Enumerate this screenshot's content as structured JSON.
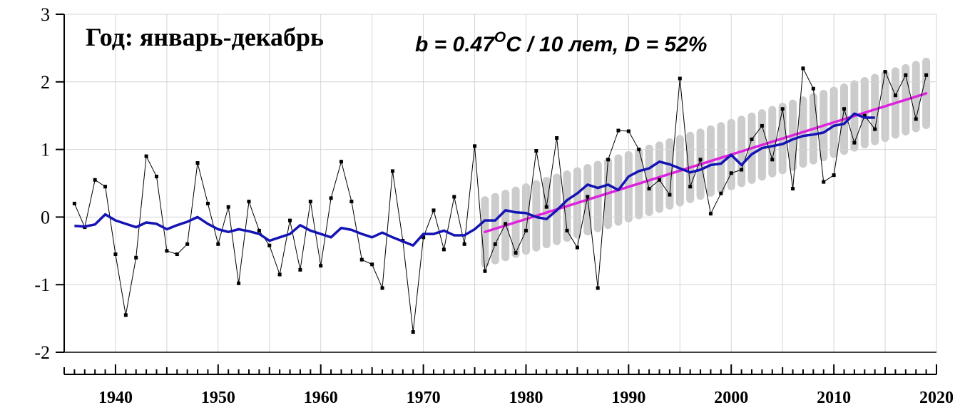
{
  "chart_data": {
    "type": "line",
    "title": "Год: январь-декабрь",
    "formula": {
      "prefix": "b = 0.47",
      "sup": "O",
      "suffix": "C / 10 лет, D = 52%"
    },
    "xlabel": "",
    "ylabel": "",
    "xlim": [
      1935,
      2020
    ],
    "ylim": [
      -2,
      3
    ],
    "yticks": [
      -2,
      -1,
      0,
      1,
      2,
      3
    ],
    "xticks_labeled": [
      1940,
      1950,
      1960,
      1970,
      1980,
      1990,
      2000,
      2010,
      2020
    ],
    "grid": true,
    "colors": {
      "annual": "#000000",
      "smoothed": "#1414b4",
      "trend": "#dd22dd",
      "band": "#cccccc",
      "grid": "#d4d4d4"
    },
    "series": [
      {
        "name": "annual",
        "x": [
          1936,
          1937,
          1938,
          1939,
          1940,
          1941,
          1942,
          1943,
          1944,
          1945,
          1946,
          1947,
          1948,
          1949,
          1950,
          1951,
          1952,
          1953,
          1954,
          1955,
          1956,
          1957,
          1958,
          1959,
          1960,
          1961,
          1962,
          1963,
          1964,
          1965,
          1966,
          1967,
          1968,
          1969,
          1970,
          1971,
          1972,
          1973,
          1974,
          1975,
          1976,
          1977,
          1978,
          1979,
          1980,
          1981,
          1982,
          1983,
          1984,
          1985,
          1986,
          1987,
          1988,
          1989,
          1990,
          1991,
          1992,
          1993,
          1994,
          1995,
          1996,
          1997,
          1998,
          1999,
          2000,
          2001,
          2002,
          2003,
          2004,
          2005,
          2006,
          2007,
          2008,
          2009,
          2010,
          2011,
          2012,
          2013,
          2014,
          2015,
          2016,
          2017,
          2018,
          2019
        ],
        "values": [
          0.2,
          -0.15,
          0.55,
          0.45,
          -0.55,
          -1.45,
          -0.6,
          0.9,
          0.6,
          -0.5,
          -0.55,
          -0.4,
          0.8,
          0.2,
          -0.4,
          0.15,
          -0.98,
          0.23,
          -0.2,
          -0.42,
          -0.85,
          -0.05,
          -0.78,
          0.23,
          -0.72,
          0.28,
          0.82,
          0.23,
          -0.63,
          -0.7,
          -1.05,
          0.68,
          -0.35,
          -1.7,
          -0.3,
          0.1,
          -0.48,
          0.3,
          -0.4,
          1.05,
          -0.8,
          -0.4,
          -0.1,
          -0.53,
          -0.2,
          0.98,
          0.15,
          1.17,
          -0.2,
          -0.45,
          0.3,
          -1.05,
          0.85,
          1.28,
          1.27,
          1.0,
          0.42,
          0.55,
          0.33,
          2.05,
          0.45,
          0.85,
          0.05,
          0.35,
          0.65,
          0.7,
          1.15,
          1.35,
          0.85,
          1.6,
          0.42,
          2.2,
          1.9,
          0.52,
          0.62,
          1.6,
          1.1,
          1.5,
          1.3,
          2.15,
          1.8,
          2.1,
          1.45,
          2.1
        ]
      },
      {
        "name": "smoothed",
        "x": [
          1936,
          1937,
          1938,
          1939,
          1940,
          1941,
          1942,
          1943,
          1944,
          1945,
          1946,
          1947,
          1948,
          1949,
          1950,
          1951,
          1952,
          1953,
          1954,
          1955,
          1956,
          1957,
          1958,
          1959,
          1960,
          1961,
          1962,
          1963,
          1964,
          1965,
          1966,
          1967,
          1968,
          1969,
          1970,
          1971,
          1972,
          1973,
          1974,
          1975,
          1976,
          1977,
          1978,
          1979,
          1980,
          1981,
          1982,
          1983,
          1984,
          1985,
          1986,
          1987,
          1988,
          1989,
          1990,
          1991,
          1992,
          1993,
          1994,
          1995,
          1996,
          1997,
          1998,
          1999,
          2000,
          2001,
          2002,
          2003,
          2004,
          2005,
          2006,
          2007,
          2008,
          2009,
          2010,
          2011,
          2012,
          2013,
          2014
        ],
        "values": [
          -0.13,
          -0.14,
          -0.11,
          0.04,
          -0.05,
          -0.1,
          -0.15,
          -0.08,
          -0.1,
          -0.18,
          -0.12,
          -0.07,
          0.0,
          -0.1,
          -0.18,
          -0.22,
          -0.18,
          -0.21,
          -0.25,
          -0.35,
          -0.3,
          -0.25,
          -0.12,
          -0.2,
          -0.25,
          -0.3,
          -0.16,
          -0.19,
          -0.25,
          -0.3,
          -0.23,
          -0.3,
          -0.36,
          -0.42,
          -0.25,
          -0.25,
          -0.2,
          -0.27,
          -0.27,
          -0.18,
          -0.05,
          -0.05,
          0.1,
          0.07,
          0.06,
          0.0,
          -0.03,
          0.1,
          0.25,
          0.35,
          0.48,
          0.43,
          0.48,
          0.4,
          0.6,
          0.68,
          0.72,
          0.82,
          0.78,
          0.72,
          0.66,
          0.7,
          0.77,
          0.79,
          0.92,
          0.77,
          0.93,
          1.02,
          1.05,
          1.08,
          1.15,
          1.2,
          1.22,
          1.25,
          1.35,
          1.38,
          1.53,
          1.47,
          1.47
        ]
      }
    ],
    "trend": {
      "x": [
        1976,
        2019
      ],
      "values": [
        -0.22,
        1.83
      ]
    },
    "band": {
      "x_start": 1976,
      "x_end": 2019,
      "half_width": 0.47
    }
  }
}
